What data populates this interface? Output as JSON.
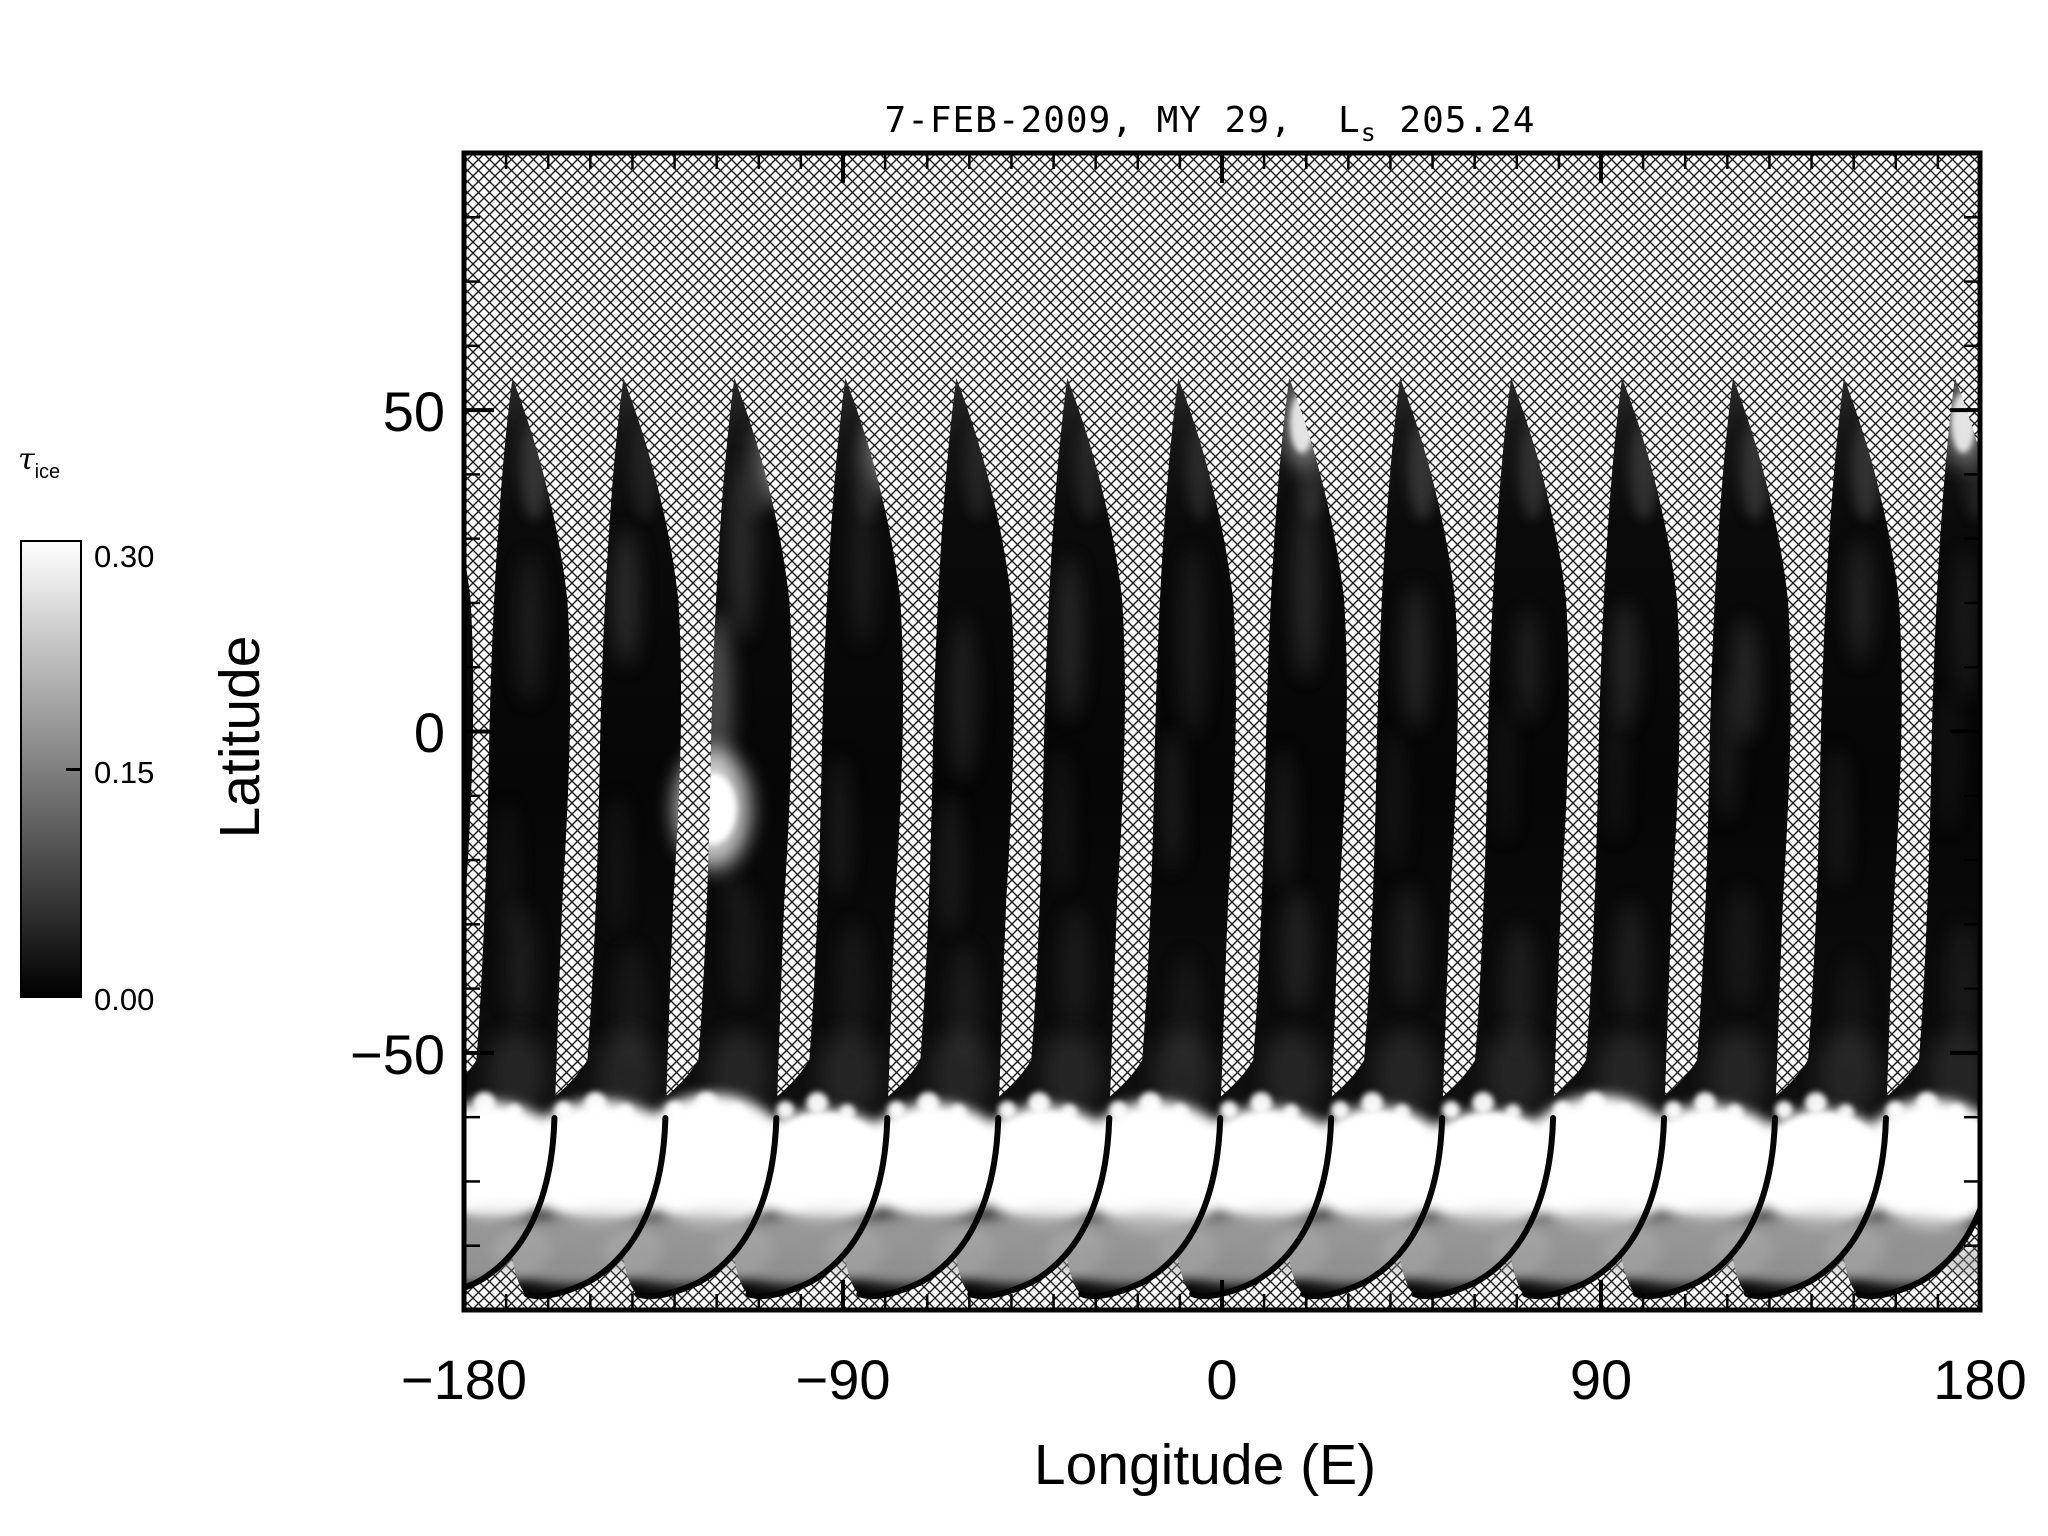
{
  "title": {
    "prefix": "7-FEB-2009, MY 29,  L",
    "sub": "s",
    "suffix": " 205.24"
  },
  "colorbar": {
    "label_tau": "τ",
    "label_sub": "ice",
    "tick_labels": [
      "0.30",
      "0.15",
      "0.00"
    ]
  },
  "chart_data": {
    "type": "heatmap",
    "title": "7-FEB-2009, MY 29, Ls 205.24",
    "observation_date": "7-FEB-2009",
    "mars_year": "MY 29",
    "solar_longitude_Ls": 205.24,
    "quantity": "water ice cloud optical depth (τ_ice) mapped from polar-orbit swaths",
    "xlabel": "Longitude (E)",
    "ylabel": "Latitude",
    "xlim": [
      -180,
      180
    ],
    "ylim": [
      -90,
      90
    ],
    "x_tick_values": [
      -180,
      -90,
      0,
      90,
      180
    ],
    "x_tick_labels": [
      "−180",
      "−90",
      "0",
      "90",
      "180"
    ],
    "y_tick_values": [
      50,
      0,
      -50
    ],
    "y_tick_labels": [
      "50",
      "0",
      "−50"
    ],
    "minor_tick_step_deg": 10,
    "colorbar": {
      "label": "τ_ice",
      "min": 0.0,
      "mid": 0.15,
      "max": 0.3,
      "min_label": "0.00",
      "mid_label": "0.15",
      "max_label": "0.30",
      "scale": "grayscale: black = 0.00, white = 0.30"
    },
    "no_data_style": "cross-hatched background where no swath coverage",
    "swaths": {
      "count": 14,
      "partial_swath_lon": -191.5,
      "first_tip_lon": -168.5,
      "spacing_lon_deg": 26.35,
      "tip_lat": 55,
      "body_value": "τ ≈ 0.00–0.05 (near black, faint gray wisps)",
      "south_polar_cloud_band": {
        "lat_from": -58,
        "lat_to": -78,
        "value": "τ ≥ 0.30 (saturated white)"
      },
      "south_wisp_band": {
        "lat_from": -75,
        "lat_to": -85,
        "value": "τ ≈ 0.10–0.20 (gray wisps)"
      }
    },
    "features": [
      {
        "type": "bright_cloud",
        "lon": -121,
        "lat": -12,
        "note": "isolated bright τ≈0.30 equatorial ice cloud"
      },
      {
        "type": "tip_cloud",
        "lon": -105,
        "lat": 42,
        "note": "bright streak near swath tip"
      },
      {
        "type": "tip_cloud",
        "lon": -79,
        "lat": 44,
        "note": "bright streak near swath tip"
      },
      {
        "type": "tip_cloud",
        "lon": 19,
        "lat": 48,
        "note": "bright patch at swath tip"
      },
      {
        "type": "tip_cloud",
        "lon": 176,
        "lat": 48,
        "note": "bright patch at far-right swath tip"
      }
    ]
  }
}
